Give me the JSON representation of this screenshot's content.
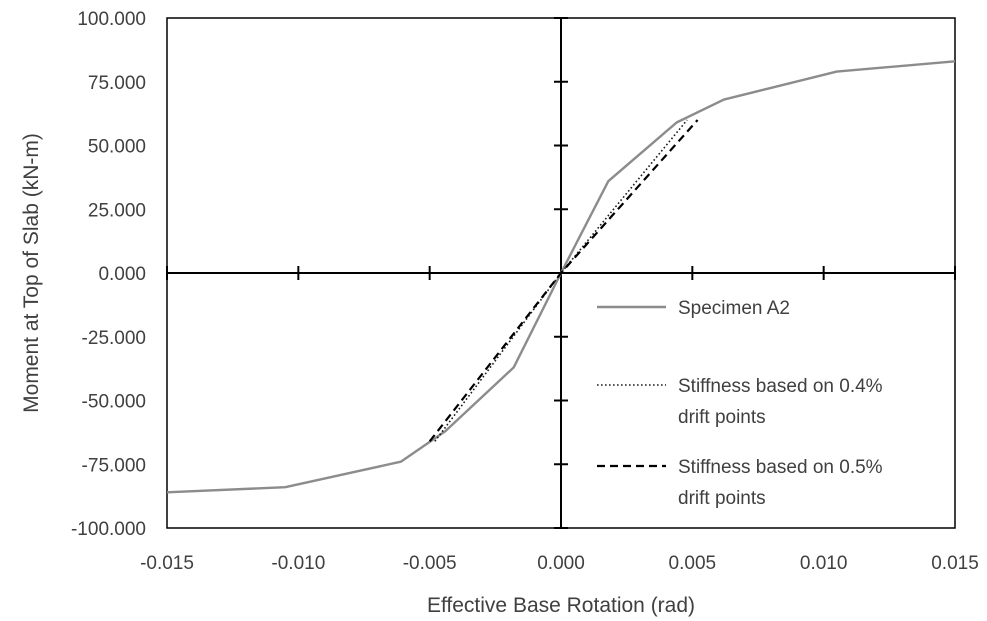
{
  "chart_data": {
    "type": "line",
    "title": "",
    "xlabel": "Effective Base Rotation (rad)",
    "ylabel": "Moment at Top of Slab (kN-m)",
    "xlim": [
      -0.015,
      0.015
    ],
    "ylim": [
      -100,
      100
    ],
    "x_ticks": [
      -0.015,
      -0.01,
      -0.005,
      0.0,
      0.005,
      0.01,
      0.015
    ],
    "x_tick_labels": [
      "-0.015",
      "-0.010",
      "-0.005",
      "0.000",
      "0.005",
      "0.010",
      "0.015"
    ],
    "y_ticks": [
      100,
      75,
      50,
      25,
      0,
      -25,
      -50,
      -75,
      -100
    ],
    "y_tick_labels": [
      "100.000",
      "75.000",
      "50.000",
      "25.000",
      "0.000",
      "-25.000",
      "-50.000",
      "-75.000",
      "-100.000"
    ],
    "grid": false,
    "legend_position": "right",
    "series": [
      {
        "name": "Specimen A2",
        "style": "solid",
        "color": "#8c8c8c",
        "x": [
          -0.015,
          -0.0105,
          -0.0061,
          -0.0044,
          -0.0018,
          0.0,
          0.0018,
          0.0044,
          0.0062,
          0.0105,
          0.015
        ],
        "y": [
          -86,
          -84,
          -74,
          -62,
          -37,
          0,
          36,
          59,
          68,
          79,
          83
        ]
      },
      {
        "name": "Stiffness based on 0.4% drift points",
        "legend_lines": [
          "Stiffness based on 0.4%",
          "drift points"
        ],
        "style": "dotted",
        "color": "#1a1a1a",
        "x": [
          -0.0048,
          0.0,
          0.0048
        ],
        "y": [
          -66,
          0,
          60
        ]
      },
      {
        "name": "Stiffness based on 0.5% drift points",
        "legend_lines": [
          "Stiffness based on 0.5%",
          "drift points"
        ],
        "style": "dashed",
        "color": "#000000",
        "x": [
          -0.005,
          0.0,
          0.0052
        ],
        "y": [
          -66,
          0,
          60
        ]
      }
    ]
  }
}
